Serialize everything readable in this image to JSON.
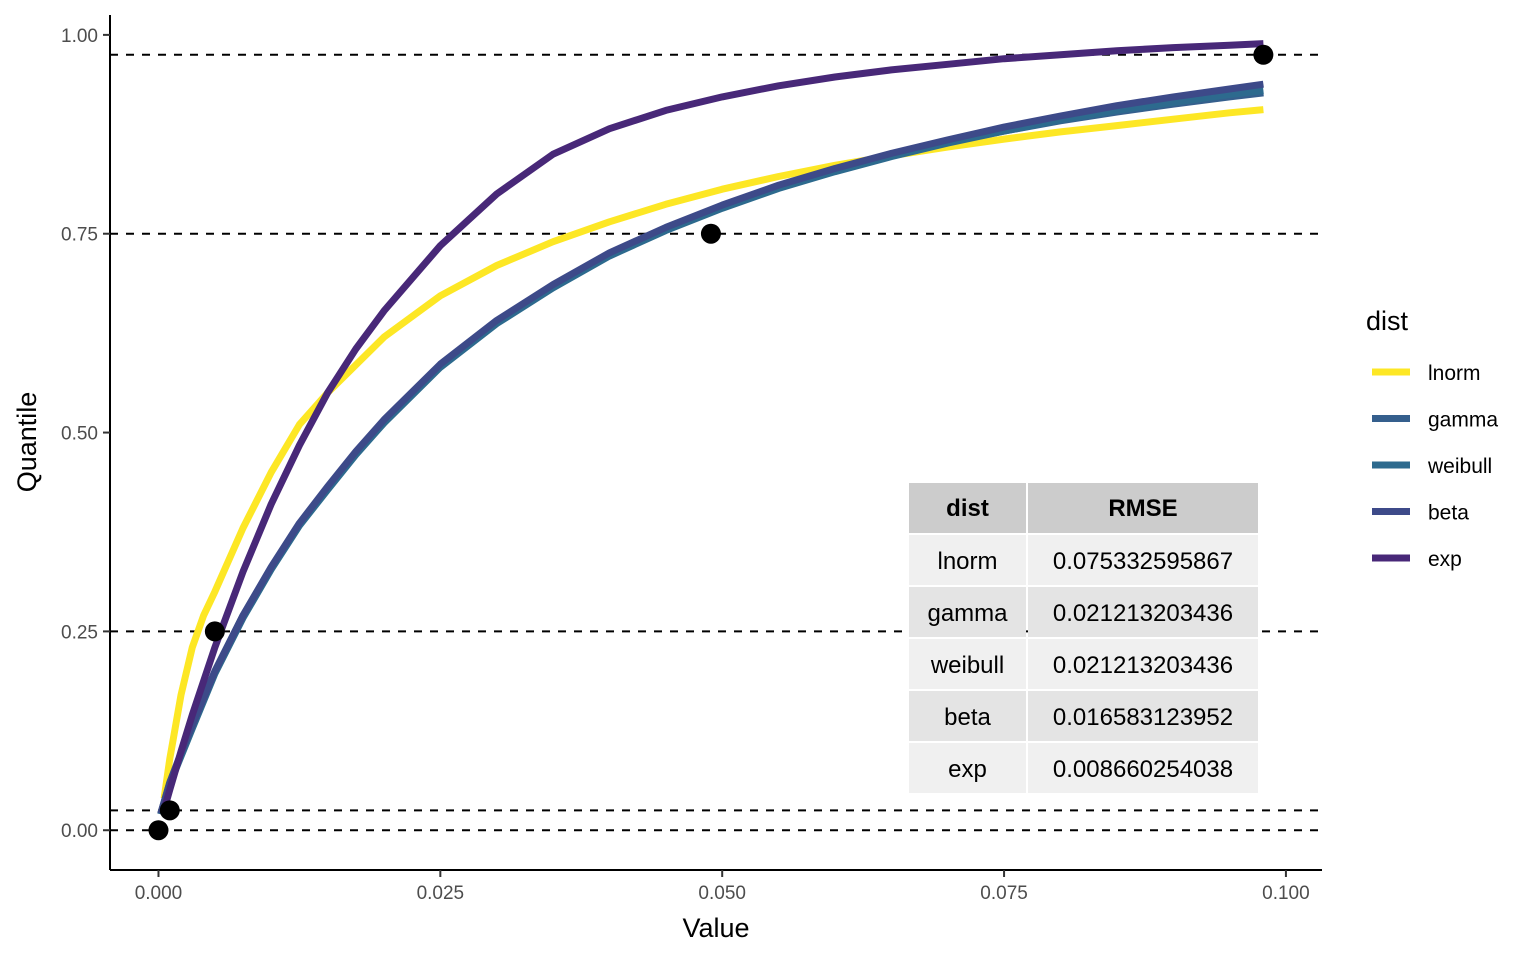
{
  "chart_data": {
    "type": "line",
    "xlabel": "Value",
    "ylabel": "Quantile",
    "xlim": [
      -0.0043,
      0.1032
    ],
    "ylim": [
      -0.05,
      1.025
    ],
    "x_ticks": [
      0.0,
      0.025,
      0.05,
      0.075,
      0.1
    ],
    "x_tick_labels": [
      "0.000",
      "0.025",
      "0.050",
      "0.075",
      "0.100"
    ],
    "y_ticks": [
      0.0,
      0.25,
      0.5,
      0.75,
      1.0
    ],
    "y_tick_labels": [
      "0.00",
      "0.25",
      "0.50",
      "0.75",
      "1.00"
    ],
    "grid": false,
    "reference_lines_y": [
      0.0,
      0.025,
      0.25,
      0.75,
      0.975
    ],
    "points": [
      {
        "x": 0.0,
        "y": 0.0
      },
      {
        "x": 0.001,
        "y": 0.025
      },
      {
        "x": 0.005,
        "y": 0.25
      },
      {
        "x": 0.049,
        "y": 0.75
      },
      {
        "x": 0.098,
        "y": 0.975
      }
    ],
    "legend": {
      "title": "dist",
      "position": "right"
    },
    "series": [
      {
        "name": "lnorm",
        "color": "#FDE725",
        "x": [
          0.0005,
          0.001,
          0.002,
          0.003,
          0.004,
          0.005,
          0.0075,
          0.01,
          0.0125,
          0.015,
          0.02,
          0.025,
          0.03,
          0.035,
          0.04,
          0.045,
          0.05,
          0.055,
          0.06,
          0.065,
          0.07,
          0.075,
          0.08,
          0.085,
          0.09,
          0.095,
          0.098
        ],
        "y": [
          0.04,
          0.09,
          0.17,
          0.23,
          0.27,
          0.3,
          0.38,
          0.45,
          0.51,
          0.55,
          0.62,
          0.672,
          0.71,
          0.74,
          0.765,
          0.787,
          0.806,
          0.822,
          0.836,
          0.848,
          0.859,
          0.869,
          0.878,
          0.886,
          0.894,
          0.902,
          0.906
        ]
      },
      {
        "name": "gamma",
        "color": "#355F8D",
        "x": [
          0.0002,
          0.001,
          0.002,
          0.003,
          0.005,
          0.0075,
          0.01,
          0.0125,
          0.015,
          0.0175,
          0.02,
          0.025,
          0.03,
          0.035,
          0.04,
          0.045,
          0.05,
          0.055,
          0.06,
          0.065,
          0.07,
          0.075,
          0.08,
          0.085,
          0.09,
          0.095,
          0.098
        ],
        "y": [
          0.02,
          0.06,
          0.095,
          0.13,
          0.2,
          0.27,
          0.33,
          0.385,
          0.43,
          0.475,
          0.515,
          0.585,
          0.64,
          0.685,
          0.725,
          0.757,
          0.785,
          0.81,
          0.83,
          0.849,
          0.865,
          0.879,
          0.892,
          0.903,
          0.913,
          0.922,
          0.927
        ]
      },
      {
        "name": "weibull",
        "color": "#2D6A8E",
        "x": [
          0.0002,
          0.001,
          0.002,
          0.003,
          0.005,
          0.0075,
          0.01,
          0.0125,
          0.015,
          0.0175,
          0.02,
          0.025,
          0.03,
          0.035,
          0.04,
          0.045,
          0.05,
          0.055,
          0.06,
          0.065,
          0.07,
          0.075,
          0.08,
          0.085,
          0.09,
          0.095,
          0.098
        ],
        "y": [
          0.02,
          0.058,
          0.093,
          0.128,
          0.197,
          0.267,
          0.328,
          0.383,
          0.428,
          0.472,
          0.512,
          0.582,
          0.637,
          0.682,
          0.722,
          0.754,
          0.782,
          0.807,
          0.828,
          0.847,
          0.864,
          0.879,
          0.893,
          0.905,
          0.915,
          0.925,
          0.93
        ]
      },
      {
        "name": "beta",
        "color": "#3D4A89",
        "x": [
          0.0002,
          0.001,
          0.002,
          0.003,
          0.005,
          0.0075,
          0.01,
          0.0125,
          0.015,
          0.0175,
          0.02,
          0.025,
          0.03,
          0.035,
          0.04,
          0.045,
          0.05,
          0.055,
          0.06,
          0.065,
          0.07,
          0.075,
          0.08,
          0.085,
          0.09,
          0.095,
          0.098
        ],
        "y": [
          0.021,
          0.06,
          0.097,
          0.132,
          0.2,
          0.27,
          0.331,
          0.386,
          0.432,
          0.476,
          0.516,
          0.586,
          0.641,
          0.686,
          0.726,
          0.758,
          0.786,
          0.811,
          0.832,
          0.851,
          0.868,
          0.884,
          0.898,
          0.911,
          0.922,
          0.932,
          0.938
        ]
      },
      {
        "name": "exp",
        "color": "#482878",
        "x": [
          0.0005,
          0.001,
          0.002,
          0.003,
          0.005,
          0.0075,
          0.01,
          0.0125,
          0.015,
          0.0175,
          0.02,
          0.025,
          0.03,
          0.035,
          0.04,
          0.045,
          0.05,
          0.055,
          0.06,
          0.065,
          0.07,
          0.075,
          0.08,
          0.085,
          0.09,
          0.095,
          0.098
        ],
        "y": [
          0.026,
          0.051,
          0.099,
          0.145,
          0.23,
          0.325,
          0.41,
          0.484,
          0.55,
          0.605,
          0.653,
          0.735,
          0.8,
          0.85,
          0.882,
          0.905,
          0.922,
          0.936,
          0.947,
          0.956,
          0.963,
          0.97,
          0.975,
          0.98,
          0.984,
          0.987,
          0.989
        ]
      }
    ],
    "table": {
      "headers": [
        "dist",
        "RMSE"
      ],
      "rows": [
        [
          "lnorm",
          "0.075332595867"
        ],
        [
          "gamma",
          "0.021213203436"
        ],
        [
          "weibull",
          "0.021213203436"
        ],
        [
          "beta",
          "0.016583123952"
        ],
        [
          "exp",
          "0.008660254038"
        ]
      ]
    }
  }
}
